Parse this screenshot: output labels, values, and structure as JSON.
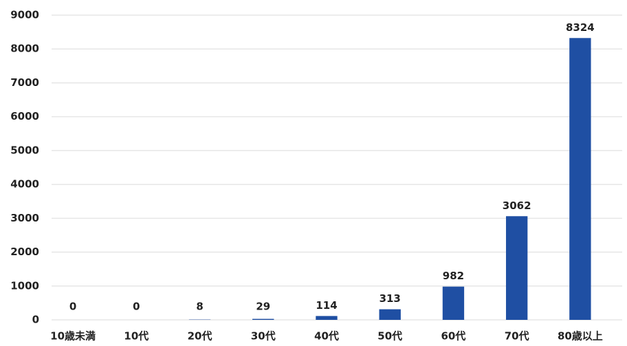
{
  "chart_data": {
    "type": "bar",
    "categories": [
      "10歳未満",
      "10代",
      "20代",
      "30代",
      "40代",
      "50代",
      "60代",
      "70代",
      "80歳以上"
    ],
    "values": [
      0,
      0,
      8,
      29,
      114,
      313,
      982,
      3062,
      8324
    ],
    "color": "#1f4fa3",
    "ylim": [
      0,
      9000
    ],
    "yticks": [
      0,
      1000,
      2000,
      3000,
      4000,
      5000,
      6000,
      7000,
      8000,
      9000
    ],
    "grid": true
  }
}
